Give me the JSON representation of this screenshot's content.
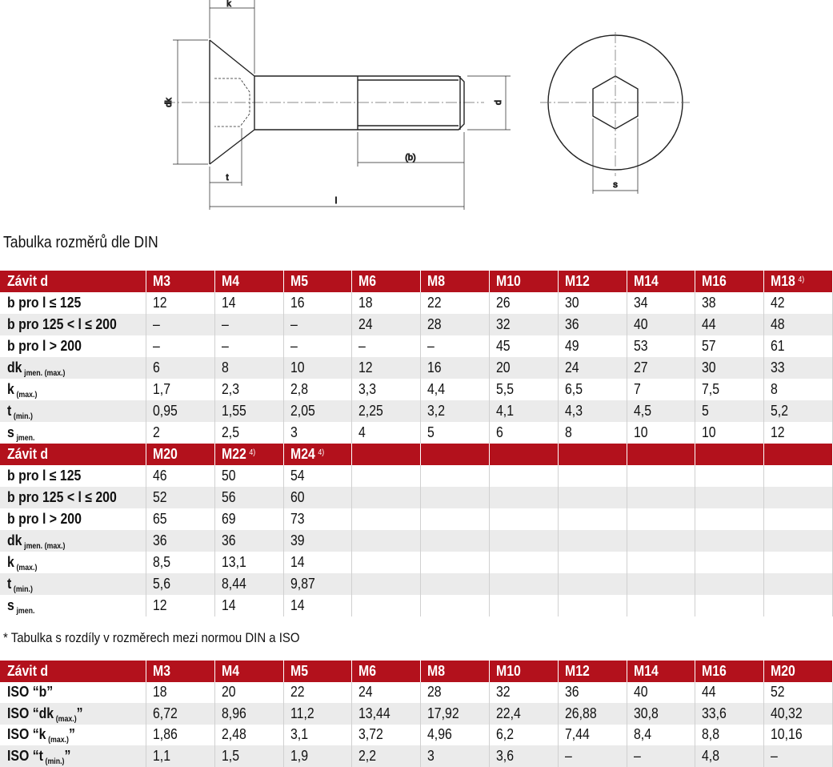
{
  "drawing": {
    "labels": {
      "k": "k",
      "dk": "dk",
      "t": "t",
      "l": "l",
      "b": "(b)",
      "d": "d",
      "s": "s"
    }
  },
  "title": "Tabulka rozměrů dle DIN",
  "table1": {
    "blocks": [
      {
        "header": [
          "Závit d",
          "M3",
          "M4",
          "M5",
          "M6",
          "M8",
          "M10",
          "M12",
          "M14",
          "M16",
          {
            "text": "M18",
            "sup": "4)"
          }
        ],
        "rows": [
          [
            "b pro l ≤ 125",
            "12",
            "14",
            "16",
            "18",
            "22",
            "26",
            "30",
            "34",
            "38",
            "42"
          ],
          [
            "b pro 125 < l ≤ 200",
            "–",
            "–",
            "–",
            "24",
            "28",
            "32",
            "36",
            "40",
            "44",
            "48"
          ],
          [
            "b pro l > 200",
            "–",
            "–",
            "–",
            "–",
            "–",
            "45",
            "49",
            "53",
            "57",
            "61"
          ],
          [
            {
              "text": "dk",
              "sub": "jmen. (max.)"
            },
            "6",
            "8",
            "10",
            "12",
            "16",
            "20",
            "24",
            "27",
            "30",
            "33"
          ],
          [
            {
              "text": "k",
              "sub": "(max.)"
            },
            "1,7",
            "2,3",
            "2,8",
            "3,3",
            "4,4",
            "5,5",
            "6,5",
            "7",
            "7,5",
            "8"
          ],
          [
            {
              "text": "t",
              "sub": "(min.)"
            },
            "0,95",
            "1,55",
            "2,05",
            "2,25",
            "3,2",
            "4,1",
            "4,3",
            "4,5",
            "5",
            "5,2"
          ],
          [
            {
              "text": "s",
              "sub": "jmen."
            },
            "2",
            "2,5",
            "3",
            "4",
            "5",
            "6",
            "8",
            "10",
            "10",
            "12"
          ]
        ]
      },
      {
        "header": [
          "Závit d",
          "M20",
          {
            "text": "M22",
            "sup": "4)"
          },
          {
            "text": "M24",
            "sup": "4)"
          }
        ],
        "rows": [
          [
            "b pro l ≤ 125",
            "46",
            "50",
            "54"
          ],
          [
            "b pro 125 < l ≤ 200",
            "52",
            "56",
            "60"
          ],
          [
            "b pro l > 200",
            "65",
            "69",
            "73"
          ],
          [
            {
              "text": "dk",
              "sub": "jmen. (max.)"
            },
            "36",
            "36",
            "39"
          ],
          [
            {
              "text": "k",
              "sub": "(max.)"
            },
            "8,5",
            "13,1",
            "14"
          ],
          [
            {
              "text": "t",
              "sub": "(min.)"
            },
            "5,6",
            "8,44",
            "9,87"
          ],
          [
            {
              "text": "s",
              "sub": "jmen."
            },
            "12",
            "14",
            "14"
          ]
        ]
      }
    ]
  },
  "note": "* Tabulka s rozdíly v rozměrech mezi normou DIN a ISO",
  "table2": {
    "blocks": [
      {
        "header": [
          "Závit d",
          "M3",
          "M4",
          "M5",
          "M6",
          "M8",
          "M10",
          "M12",
          "M14",
          "M16",
          "M20"
        ],
        "rows": [
          [
            "ISO “b”",
            "18",
            "20",
            "22",
            "24",
            "28",
            "32",
            "36",
            "40",
            "44",
            "52"
          ],
          [
            {
              "text": "ISO “dk",
              "sub": "(max.)",
              "after": "”"
            },
            "6,72",
            "8,96",
            "11,2",
            "13,44",
            "17,92",
            "22,4",
            "26,88",
            "30,8",
            "33,6",
            "40,32"
          ],
          [
            {
              "text": "ISO “k",
              "sub": "(max.)",
              "after": "”"
            },
            "1,86",
            "2,48",
            "3,1",
            "3,72",
            "4,96",
            "6,2",
            "7,44",
            "8,4",
            "8,8",
            "10,16"
          ],
          [
            {
              "text": "ISO “t",
              "sub": "(min.)",
              "after": "”"
            },
            "1,1",
            "1,5",
            "1,9",
            "2,2",
            "3",
            "3,6",
            "–",
            "–",
            "4,8",
            "–"
          ]
        ]
      }
    ]
  }
}
